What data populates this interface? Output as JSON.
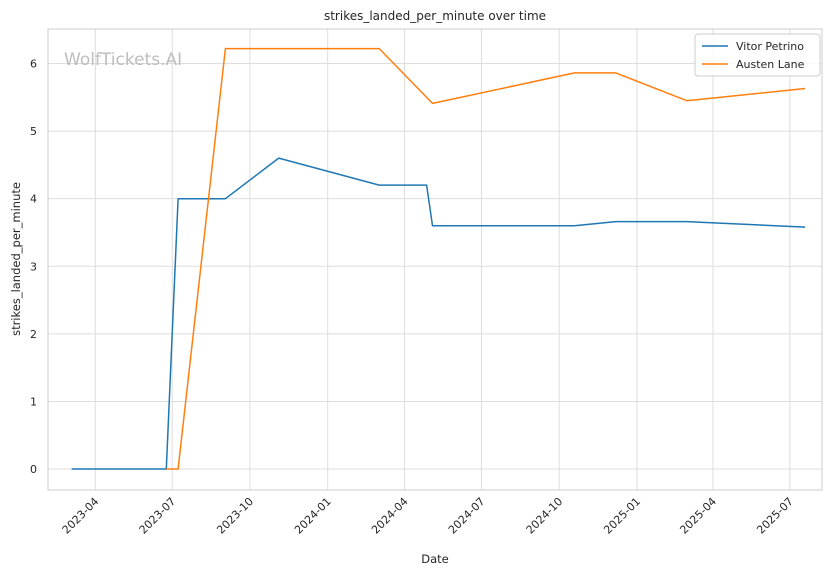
{
  "chart_data": {
    "type": "line",
    "title": "strikes_landed_per_minute over time",
    "xlabel": "Date",
    "ylabel": "strikes_landed_per_minute",
    "watermark": "WolfTickets.AI",
    "x_ticks": [
      "2023-04",
      "2023-07",
      "2023-10",
      "2024-01",
      "2024-04",
      "2024-07",
      "2024-10",
      "2025-01",
      "2025-04",
      "2025-07"
    ],
    "y_ticks": [
      "0",
      "1",
      "2",
      "3",
      "4",
      "5",
      "6"
    ],
    "xlim": [
      "2023-02-04",
      "2025-08-08"
    ],
    "ylim": [
      -0.31,
      6.51
    ],
    "grid": true,
    "legend_position": "top-right",
    "series": [
      {
        "name": "Vitor Petrino",
        "color": "#1f77b4",
        "points": [
          [
            "2023-03-04",
            0.0
          ],
          [
            "2023-06-24",
            0.0
          ],
          [
            "2023-07-08",
            4.0
          ],
          [
            "2023-09-02",
            4.0
          ],
          [
            "2023-11-04",
            4.6
          ],
          [
            "2024-03-02",
            4.2
          ],
          [
            "2024-04-27",
            4.2
          ],
          [
            "2024-05-04",
            3.6
          ],
          [
            "2024-10-19",
            3.6
          ],
          [
            "2024-12-07",
            3.66
          ],
          [
            "2025-03-01",
            3.66
          ],
          [
            "2025-07-19",
            3.58
          ]
        ]
      },
      {
        "name": "Austen Lane",
        "color": "#ff7f0e",
        "points": [
          [
            "2023-06-24",
            0.0
          ],
          [
            "2023-07-08",
            0.0
          ],
          [
            "2023-09-02",
            6.22
          ],
          [
            "2024-03-02",
            6.22
          ],
          [
            "2024-05-04",
            5.41
          ],
          [
            "2024-10-19",
            5.86
          ],
          [
            "2024-12-07",
            5.86
          ],
          [
            "2025-03-01",
            5.45
          ],
          [
            "2025-07-19",
            5.63
          ]
        ]
      }
    ]
  }
}
